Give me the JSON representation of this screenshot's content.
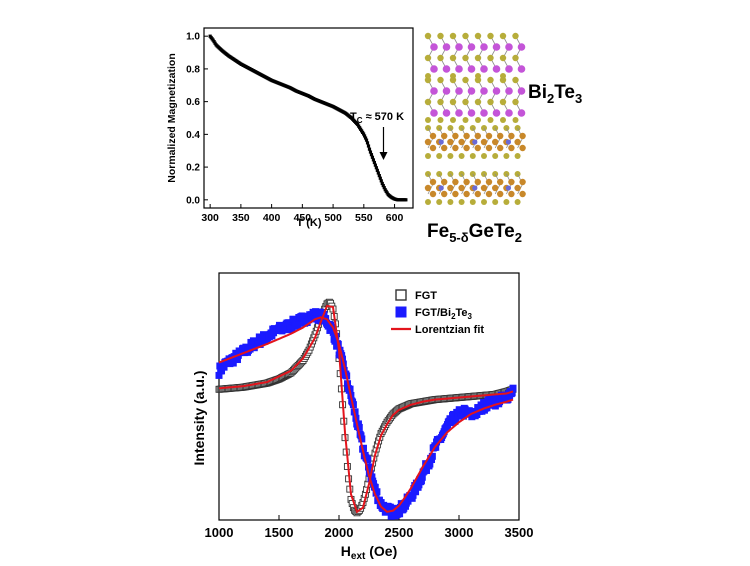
{
  "chart_data": [
    {
      "type": "scatter",
      "xlabel": "T (K)",
      "ylabel": "Normalized Magnetization",
      "xlim": [
        290,
        630
      ],
      "ylim": [
        -0.05,
        1.05
      ],
      "xticks": [
        300,
        350,
        400,
        450,
        500,
        550,
        600
      ],
      "yticks": [
        0.0,
        0.2,
        0.4,
        0.6,
        0.8,
        1.0
      ],
      "annotation": {
        "text_main": "T",
        "text_sub": "C",
        "text_rest": " ≈ 570 K",
        "arrow_x": 582
      },
      "grid": false,
      "series": [
        {
          "marker": "filled-square-small",
          "color": "#000000",
          "x": [
            300,
            305,
            310,
            320,
            330,
            340,
            350,
            360,
            370,
            380,
            390,
            400,
            410,
            420,
            430,
            440,
            450,
            460,
            470,
            480,
            490,
            500,
            510,
            520,
            530,
            540,
            550,
            555,
            560,
            565,
            570,
            575,
            580,
            585,
            590,
            595,
            600,
            605,
            610,
            615,
            620
          ],
          "y": [
            1.0,
            0.975,
            0.945,
            0.91,
            0.88,
            0.855,
            0.83,
            0.81,
            0.79,
            0.77,
            0.75,
            0.73,
            0.715,
            0.7,
            0.685,
            0.665,
            0.65,
            0.635,
            0.615,
            0.6,
            0.585,
            0.57,
            0.55,
            0.53,
            0.5,
            0.46,
            0.4,
            0.36,
            0.3,
            0.25,
            0.2,
            0.15,
            0.1,
            0.06,
            0.03,
            0.015,
            0.005,
            0.0,
            0.0,
            0.0,
            0.0
          ]
        }
      ]
    },
    {
      "type": "scatter",
      "xlabel_main": "H",
      "xlabel_sub": "ext",
      "xlabel_rest": " (Oe)",
      "ylabel": "Intensity (a.u.)",
      "xlim": [
        1000,
        3500
      ],
      "ylim": [
        -1.15,
        1.25
      ],
      "xticks": [
        1000,
        1500,
        2000,
        2500,
        3000,
        3500
      ],
      "grid": false,
      "legend_position": "top-right",
      "series": [
        {
          "name": "FGT",
          "marker": "open-square",
          "color": "#333333",
          "x": [
            1000,
            1100,
            1200,
            1300,
            1400,
            1500,
            1600,
            1700,
            1750,
            1800,
            1850,
            1900,
            1925,
            1950,
            1975,
            2000,
            2025,
            2050,
            2075,
            2100,
            2125,
            2150,
            2175,
            2200,
            2225,
            2250,
            2275,
            2300,
            2325,
            2350,
            2400,
            2450,
            2500,
            2600,
            2700,
            2800,
            2900,
            3000,
            3100,
            3200,
            3300,
            3400,
            3450
          ],
          "y": [
            0.12,
            0.13,
            0.14,
            0.16,
            0.18,
            0.22,
            0.28,
            0.4,
            0.5,
            0.65,
            0.82,
            0.95,
            0.97,
            0.9,
            0.72,
            0.42,
            0.05,
            -0.35,
            -0.7,
            -0.95,
            -1.05,
            -1.08,
            -1.05,
            -0.98,
            -0.88,
            -0.75,
            -0.62,
            -0.5,
            -0.4,
            -0.31,
            -0.2,
            -0.12,
            -0.07,
            -0.02,
            0.0,
            0.02,
            0.03,
            0.04,
            0.05,
            0.06,
            0.07,
            0.1,
            0.12
          ]
        },
        {
          "name": "FGT/Bi₂Te₃",
          "marker": "filled-square",
          "color": "#1a1aff",
          "x": [
            1000,
            1050,
            1100,
            1150,
            1200,
            1250,
            1300,
            1350,
            1400,
            1450,
            1500,
            1550,
            1600,
            1650,
            1700,
            1750,
            1800,
            1850,
            1900,
            1950,
            2000,
            2050,
            2100,
            2150,
            2200,
            2250,
            2300,
            2350,
            2400,
            2450,
            2500,
            2550,
            2600,
            2650,
            2700,
            2750,
            2800,
            2850,
            2900,
            2950,
            3000,
            3050,
            3100,
            3150,
            3200,
            3250,
            3300,
            3350,
            3400,
            3450
          ],
          "y": [
            0.3,
            0.36,
            0.4,
            0.44,
            0.48,
            0.52,
            0.57,
            0.6,
            0.63,
            0.67,
            0.7,
            0.72,
            0.75,
            0.77,
            0.8,
            0.82,
            0.84,
            0.83,
            0.78,
            0.68,
            0.5,
            0.28,
            0.05,
            -0.2,
            -0.45,
            -0.65,
            -0.85,
            -1.0,
            -1.05,
            -1.08,
            -1.05,
            -1.0,
            -0.92,
            -0.82,
            -0.7,
            -0.58,
            -0.45,
            -0.35,
            -0.25,
            -0.17,
            -0.12,
            -0.1,
            -0.13,
            -0.1,
            -0.05,
            0.0,
            0.0,
            0.02,
            0.05,
            0.12
          ]
        },
        {
          "name": "Lorentzian fit",
          "marker": "line",
          "color": "#e3141c",
          "x": [
            1000,
            1200,
            1400,
            1600,
            1700,
            1800,
            1850,
            1900,
            1950,
            2000,
            2050,
            2100,
            2150,
            2200,
            2250,
            2300,
            2350,
            2400,
            2450,
            2500,
            2600,
            2700,
            2800,
            2900,
            3000,
            3200,
            3400,
            3450
          ],
          "y": [
            0.13,
            0.15,
            0.19,
            0.3,
            0.42,
            0.62,
            0.78,
            0.93,
            0.92,
            0.5,
            -0.3,
            -0.9,
            -1.07,
            -1.03,
            -0.8,
            -0.52,
            -0.33,
            -0.22,
            -0.13,
            -0.08,
            -0.03,
            0.0,
            0.02,
            0.03,
            0.04,
            0.06,
            0.08,
            0.1
          ]
        },
        {
          "name": "",
          "marker": "line",
          "color": "#e3141c",
          "x": [
            1000,
            1200,
            1400,
            1600,
            1700,
            1800,
            1850,
            1900,
            1950,
            2000,
            2050,
            2100,
            2150,
            2200,
            2250,
            2300,
            2350,
            2400,
            2450,
            2500,
            2550,
            2600,
            2700,
            2800,
            2900,
            3000,
            3100,
            3200,
            3300,
            3400,
            3450
          ],
          "y": [
            0.38,
            0.47,
            0.56,
            0.66,
            0.72,
            0.8,
            0.82,
            0.8,
            0.72,
            0.56,
            0.32,
            0.05,
            -0.22,
            -0.48,
            -0.72,
            -0.9,
            -1.02,
            -1.07,
            -1.06,
            -1.01,
            -0.93,
            -0.84,
            -0.63,
            -0.44,
            -0.3,
            -0.2,
            -0.12,
            -0.07,
            -0.03,
            0.0,
            0.02
          ]
        }
      ]
    }
  ],
  "structure_labels": {
    "top_main": "Bi",
    "top_sub1": "2",
    "top_mid": "Te",
    "top_sub2": "3",
    "bottom_main": "Fe",
    "bottom_sub1": "5-δ",
    "bottom_mid": "GeTe",
    "bottom_sub2": "2"
  },
  "legend": {
    "fgt": "FGT",
    "bite_main": "FGT/Bi",
    "bite_sub1": "2",
    "bite_mid": "Te",
    "bite_sub2": "3",
    "fit": "Lorentzian fit"
  },
  "colors": {
    "bi_atom": "#c455d8",
    "te_atom": "#b7ad3a",
    "fe_atom": "#c8882a",
    "ge_atom": "#6a6ad6",
    "bond": "#8c8c8c"
  }
}
